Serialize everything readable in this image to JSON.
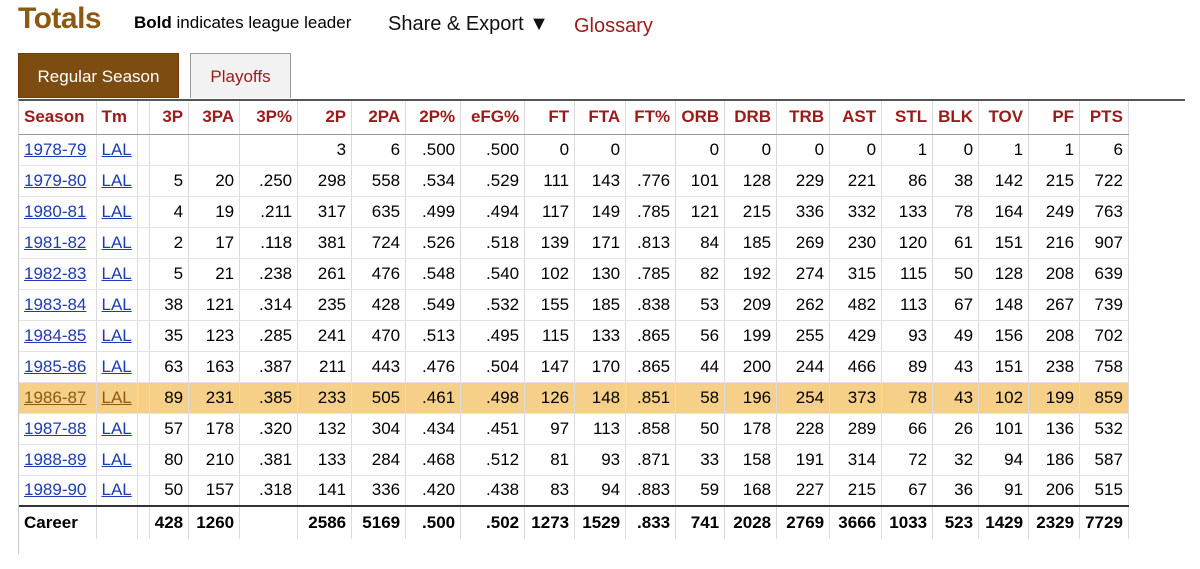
{
  "header": {
    "title": "Totals",
    "note_bold": "Bold",
    "note_rest": " indicates league leader",
    "share_label": "Share & Export ▼",
    "glossary_label": "Glossary"
  },
  "tabs": [
    {
      "label": "Regular Season",
      "active": true
    },
    {
      "label": "Playoffs",
      "active": false
    }
  ],
  "table": {
    "columns": [
      "Season",
      "Tm",
      "",
      "3P",
      "3PA",
      "3P%",
      "2P",
      "2PA",
      "2P%",
      "eFG%",
      "FT",
      "FTA",
      "FT%",
      "ORB",
      "DRB",
      "TRB",
      "AST",
      "STL",
      "BLK",
      "TOV",
      "PF",
      "PTS"
    ],
    "rows": [
      [
        "1978-79",
        "LAL",
        "",
        "",
        "",
        "",
        "3",
        "6",
        ".500",
        ".500",
        "0",
        "0",
        "",
        "0",
        "0",
        "0",
        "0",
        "1",
        "0",
        "1",
        "1",
        "6"
      ],
      [
        "1979-80",
        "LAL",
        "",
        "5",
        "20",
        ".250",
        "298",
        "558",
        ".534",
        ".529",
        "111",
        "143",
        ".776",
        "101",
        "128",
        "229",
        "221",
        "86",
        "38",
        "142",
        "215",
        "722"
      ],
      [
        "1980-81",
        "LAL",
        "",
        "4",
        "19",
        ".211",
        "317",
        "635",
        ".499",
        ".494",
        "117",
        "149",
        ".785",
        "121",
        "215",
        "336",
        "332",
        "133",
        "78",
        "164",
        "249",
        "763"
      ],
      [
        "1981-82",
        "LAL",
        "",
        "2",
        "17",
        ".118",
        "381",
        "724",
        ".526",
        ".518",
        "139",
        "171",
        ".813",
        "84",
        "185",
        "269",
        "230",
        "120",
        "61",
        "151",
        "216",
        "907"
      ],
      [
        "1982-83",
        "LAL",
        "",
        "5",
        "21",
        ".238",
        "261",
        "476",
        ".548",
        ".540",
        "102",
        "130",
        ".785",
        "82",
        "192",
        "274",
        "315",
        "115",
        "50",
        "128",
        "208",
        "639"
      ],
      [
        "1983-84",
        "LAL",
        "",
        "38",
        "121",
        ".314",
        "235",
        "428",
        ".549",
        ".532",
        "155",
        "185",
        ".838",
        "53",
        "209",
        "262",
        "482",
        "113",
        "67",
        "148",
        "267",
        "739"
      ],
      [
        "1984-85",
        "LAL",
        "",
        "35",
        "123",
        ".285",
        "241",
        "470",
        ".513",
        ".495",
        "115",
        "133",
        ".865",
        "56",
        "199",
        "255",
        "429",
        "93",
        "49",
        "156",
        "208",
        "702"
      ],
      [
        "1985-86",
        "LAL",
        "",
        "63",
        "163",
        ".387",
        "211",
        "443",
        ".476",
        ".504",
        "147",
        "170",
        ".865",
        "44",
        "200",
        "244",
        "466",
        "89",
        "43",
        "151",
        "238",
        "758"
      ],
      [
        "1986-87",
        "LAL",
        "",
        "89",
        "231",
        ".385",
        "233",
        "505",
        ".461",
        ".498",
        "126",
        "148",
        ".851",
        "58",
        "196",
        "254",
        "373",
        "78",
        "43",
        "102",
        "199",
        "859"
      ],
      [
        "1987-88",
        "LAL",
        "",
        "57",
        "178",
        ".320",
        "132",
        "304",
        ".434",
        ".451",
        "97",
        "113",
        ".858",
        "50",
        "178",
        "228",
        "289",
        "66",
        "26",
        "101",
        "136",
        "532"
      ],
      [
        "1988-89",
        "LAL",
        "",
        "80",
        "210",
        ".381",
        "133",
        "284",
        ".468",
        ".512",
        "81",
        "93",
        ".871",
        "33",
        "158",
        "191",
        "314",
        "72",
        "32",
        "94",
        "186",
        "587"
      ],
      [
        "1989-90",
        "LAL",
        "",
        "50",
        "157",
        ".318",
        "141",
        "336",
        ".420",
        ".438",
        "83",
        "94",
        ".883",
        "59",
        "168",
        "227",
        "215",
        "67",
        "36",
        "91",
        "206",
        "515"
      ]
    ],
    "highlight_row": 8,
    "footer": [
      "Career",
      "",
      "",
      "428",
      "1260",
      "",
      "2586",
      "5169",
      ".500",
      ".502",
      "1273",
      "1529",
      ".833",
      "741",
      "2028",
      "2769",
      "3666",
      "1033",
      "523",
      "1429",
      "2329",
      "7729"
    ]
  },
  "colors": {
    "title": "#8b5a12",
    "active_tab": "#7d4c10",
    "header_text": "#9b1a1a",
    "link": "#1d3bb5",
    "highlight": "#f6d088"
  }
}
